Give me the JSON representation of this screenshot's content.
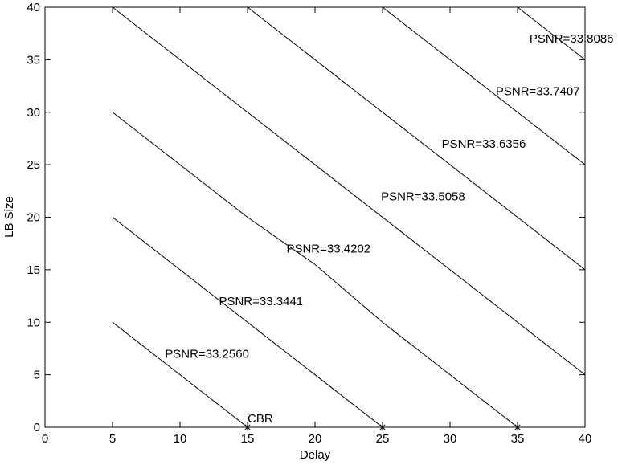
{
  "chart_data": {
    "type": "line",
    "title": "",
    "xlabel": "Delay",
    "ylabel": "LB Size",
    "xlim": [
      0,
      40
    ],
    "ylim": [
      0,
      40
    ],
    "xticks": [
      0,
      5,
      10,
      15,
      20,
      25,
      30,
      35,
      40
    ],
    "yticks": [
      0,
      5,
      10,
      15,
      20,
      25,
      30,
      35,
      40
    ],
    "grid": false,
    "line_color": "#000000",
    "series": [
      {
        "label": "PSNR=33.2560",
        "x": [
          5,
          15
        ],
        "y": [
          10,
          0
        ],
        "label_at": [
          12,
          7
        ]
      },
      {
        "label": "PSNR=33.3441",
        "x": [
          5,
          25
        ],
        "y": [
          20,
          0
        ],
        "label_at": [
          16,
          12
        ]
      },
      {
        "label": "PSNR=33.4202",
        "x": [
          5,
          10,
          15,
          20,
          25,
          35
        ],
        "y": [
          30,
          25,
          20,
          15.5,
          10,
          0
        ],
        "label_at": [
          21,
          17
        ]
      },
      {
        "label": "PSNR=33.5058",
        "x": [
          5,
          40
        ],
        "y": [
          40,
          5
        ],
        "label_at": [
          28,
          22
        ]
      },
      {
        "label": "PSNR=33.6356",
        "x": [
          15,
          40
        ],
        "y": [
          40,
          15
        ],
        "label_at": [
          32.5,
          27
        ]
      },
      {
        "label": "PSNR=33.7407",
        "x": [
          25,
          40
        ],
        "y": [
          40,
          25
        ],
        "label_at": [
          36.5,
          32
        ]
      },
      {
        "label": "PSNR=33.8086",
        "x": [
          35,
          40
        ],
        "y": [
          40,
          35
        ],
        "label_at": [
          39,
          37
        ]
      }
    ],
    "markers": [
      {
        "x": 15,
        "y": 0,
        "symbol": "*"
      },
      {
        "x": 25,
        "y": 0,
        "symbol": "*"
      },
      {
        "x": 35,
        "y": 0,
        "symbol": "*"
      }
    ],
    "annotations": [
      {
        "text": "CBR",
        "x": 15,
        "y": 0
      }
    ]
  }
}
